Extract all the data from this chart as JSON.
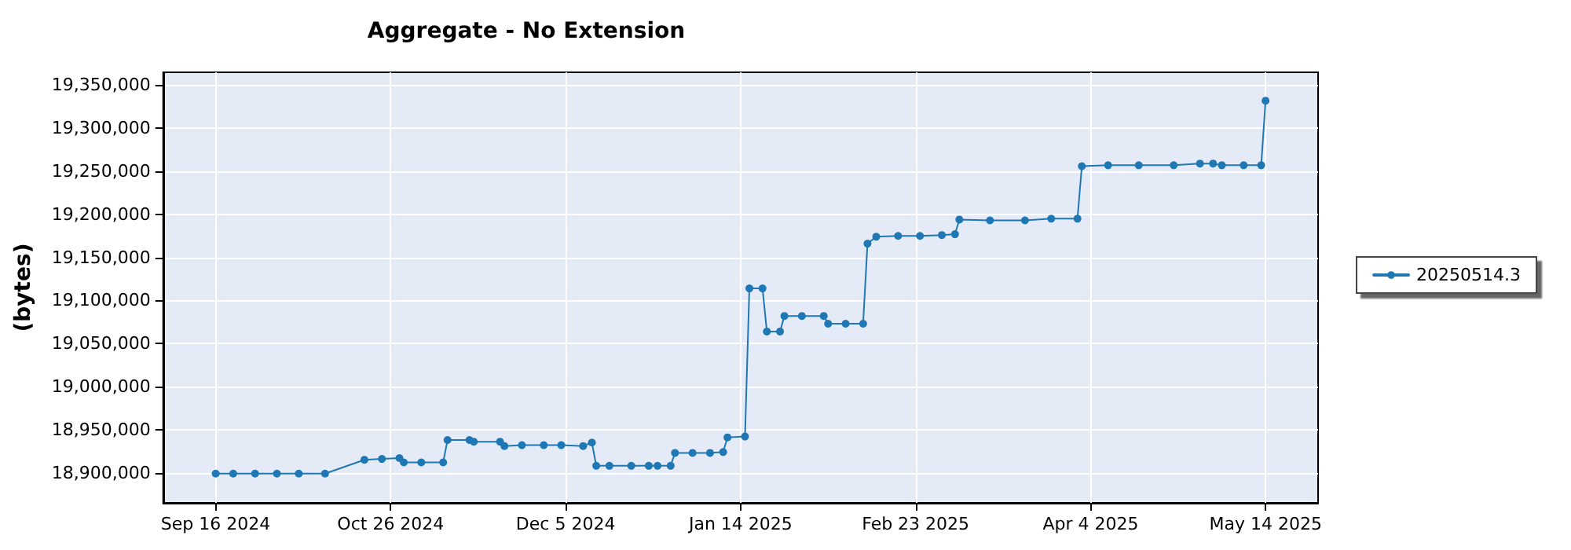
{
  "chart_data": {
    "type": "line",
    "title": "Aggregate - No Extension",
    "ylabel": "(bytes)",
    "x": [
      "2024-09-16",
      "2024-09-20",
      "2024-09-25",
      "2024-09-30",
      "2024-10-05",
      "2024-10-11",
      "2024-10-20",
      "2024-10-24",
      "2024-10-28",
      "2024-10-29",
      "2024-11-02",
      "2024-11-07",
      "2024-11-08",
      "2024-11-13",
      "2024-11-14",
      "2024-11-20",
      "2024-11-21",
      "2024-11-25",
      "2024-11-30",
      "2024-12-04",
      "2024-12-09",
      "2024-12-11",
      "2024-12-12",
      "2024-12-15",
      "2024-12-20",
      "2024-12-24",
      "2024-12-26",
      "2024-12-29",
      "2024-12-30",
      "2025-01-03",
      "2025-01-07",
      "2025-01-10",
      "2025-01-11",
      "2025-01-15",
      "2025-01-16",
      "2025-01-19",
      "2025-01-20",
      "2025-01-23",
      "2025-01-24",
      "2025-01-28",
      "2025-02-02",
      "2025-02-03",
      "2025-02-07",
      "2025-02-11",
      "2025-02-12",
      "2025-02-14",
      "2025-02-19",
      "2025-02-24",
      "2025-03-01",
      "2025-03-04",
      "2025-03-05",
      "2025-03-12",
      "2025-03-20",
      "2025-03-26",
      "2025-04-01",
      "2025-04-02",
      "2025-04-08",
      "2025-04-15",
      "2025-04-23",
      "2025-04-29",
      "2025-05-02",
      "2025-05-04",
      "2025-05-09",
      "2025-05-13",
      "2025-05-14"
    ],
    "series": [
      {
        "name": "20250514.3",
        "color": "#1f77b4",
        "values": [
          18899000,
          18899000,
          18899000,
          18899000,
          18899000,
          18899000,
          18915000,
          18916000,
          18917000,
          18912000,
          18912000,
          18912000,
          18938000,
          18938000,
          18936000,
          18936000,
          18931000,
          18932000,
          18932000,
          18932000,
          18931000,
          18935000,
          18908000,
          18908000,
          18908000,
          18908000,
          18908000,
          18908000,
          18923000,
          18923000,
          18923000,
          18924000,
          18941000,
          18942000,
          19114000,
          19114000,
          19064000,
          19064000,
          19082000,
          19082000,
          19082000,
          19073000,
          19073000,
          19073000,
          19166000,
          19174000,
          19175000,
          19175000,
          19176000,
          19177000,
          19194000,
          19193000,
          19193000,
          19195000,
          19195000,
          19256000,
          19257000,
          19257000,
          19257000,
          19259000,
          19259000,
          19257000,
          19257000,
          19257000,
          19332000
        ]
      }
    ],
    "xlim": [
      "2024-09-04",
      "2025-05-26"
    ],
    "xticks": [
      {
        "value": "2024-09-16",
        "label": "Sep 16 2024"
      },
      {
        "value": "2024-10-26",
        "label": "Oct 26 2024"
      },
      {
        "value": "2024-12-05",
        "label": "Dec 5 2024"
      },
      {
        "value": "2025-01-14",
        "label": "Jan 14 2025"
      },
      {
        "value": "2025-02-23",
        "label": "Feb 23 2025"
      },
      {
        "value": "2025-04-04",
        "label": "Apr 4 2025"
      },
      {
        "value": "2025-05-14",
        "label": "May 14 2025"
      }
    ],
    "ylim": [
      18865000,
      19365000
    ],
    "yticks": [
      {
        "value": 18900000,
        "label": "18,900,000"
      },
      {
        "value": 18950000,
        "label": "18,950,000"
      },
      {
        "value": 19000000,
        "label": "19,000,000"
      },
      {
        "value": 19050000,
        "label": "19,050,000"
      },
      {
        "value": 19100000,
        "label": "19,100,000"
      },
      {
        "value": 19150000,
        "label": "19,150,000"
      },
      {
        "value": 19200000,
        "label": "19,200,000"
      },
      {
        "value": 19250000,
        "label": "19,250,000"
      },
      {
        "value": 19300000,
        "label": "19,300,000"
      },
      {
        "value": 19350000,
        "label": "19,350,000"
      }
    ],
    "grid": true,
    "legend": "right",
    "marker": "circle",
    "line_style": "solid"
  }
}
